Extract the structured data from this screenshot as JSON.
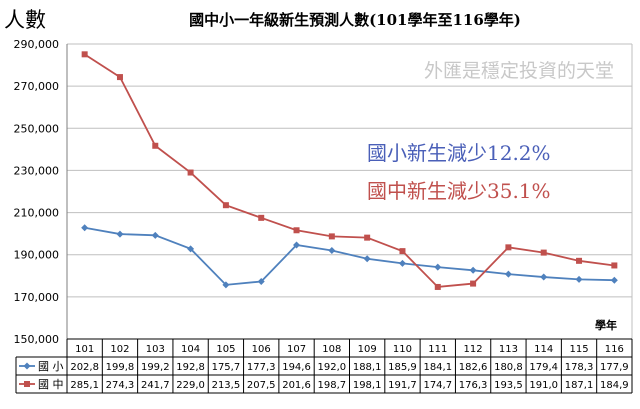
{
  "chart_data": {
    "type": "line",
    "title": "國中小一年級新生預測人數(101學年至116學年)",
    "ylabel": "人數",
    "xlabel": "學年",
    "watermark": "外匯是穩定投資的天堂",
    "annotations": [
      "國小新生減少12.2%",
      "國中新生減少35.1%"
    ],
    "categories": [
      "101",
      "102",
      "103",
      "104",
      "105",
      "106",
      "107",
      "108",
      "109",
      "110",
      "111",
      "112",
      "113",
      "114",
      "115",
      "116"
    ],
    "ylim": [
      150000,
      290000
    ],
    "yticks": [
      "150,000",
      "170,000",
      "190,000",
      "210,000",
      "230,000",
      "250,000",
      "270,000",
      "290,000"
    ],
    "ytick_values": [
      150000,
      170000,
      190000,
      210000,
      230000,
      250000,
      270000,
      290000
    ],
    "grid": true,
    "series": [
      {
        "name": "國 小",
        "color": "#4f81bd",
        "marker": "diamond",
        "values": [
          202800,
          199800,
          199200,
          192800,
          175700,
          177300,
          194600,
          192000,
          188100,
          185900,
          184100,
          182600,
          180800,
          179400,
          178300,
          177900
        ],
        "table_labels": [
          "202,8",
          "199,8",
          "199,2",
          "192,8",
          "175,7",
          "177,3",
          "194,6",
          "192,0",
          "188,1",
          "185,9",
          "184,1",
          "182,6",
          "180,8",
          "179,4",
          "178,3",
          "177,9"
        ]
      },
      {
        "name": "國 中",
        "color": "#c0504d",
        "marker": "square",
        "values": [
          285100,
          274300,
          241700,
          229000,
          213500,
          207500,
          201600,
          198700,
          198100,
          191700,
          174700,
          176300,
          193500,
          191000,
          187100,
          184900
        ],
        "table_labels": [
          "285,1",
          "274,3",
          "241,7",
          "229,0",
          "213,5",
          "207,5",
          "201,6",
          "198,7",
          "198,1",
          "191,7",
          "174,7",
          "176,3",
          "193,5",
          "191,0",
          "187,1",
          "184,9"
        ]
      }
    ]
  }
}
